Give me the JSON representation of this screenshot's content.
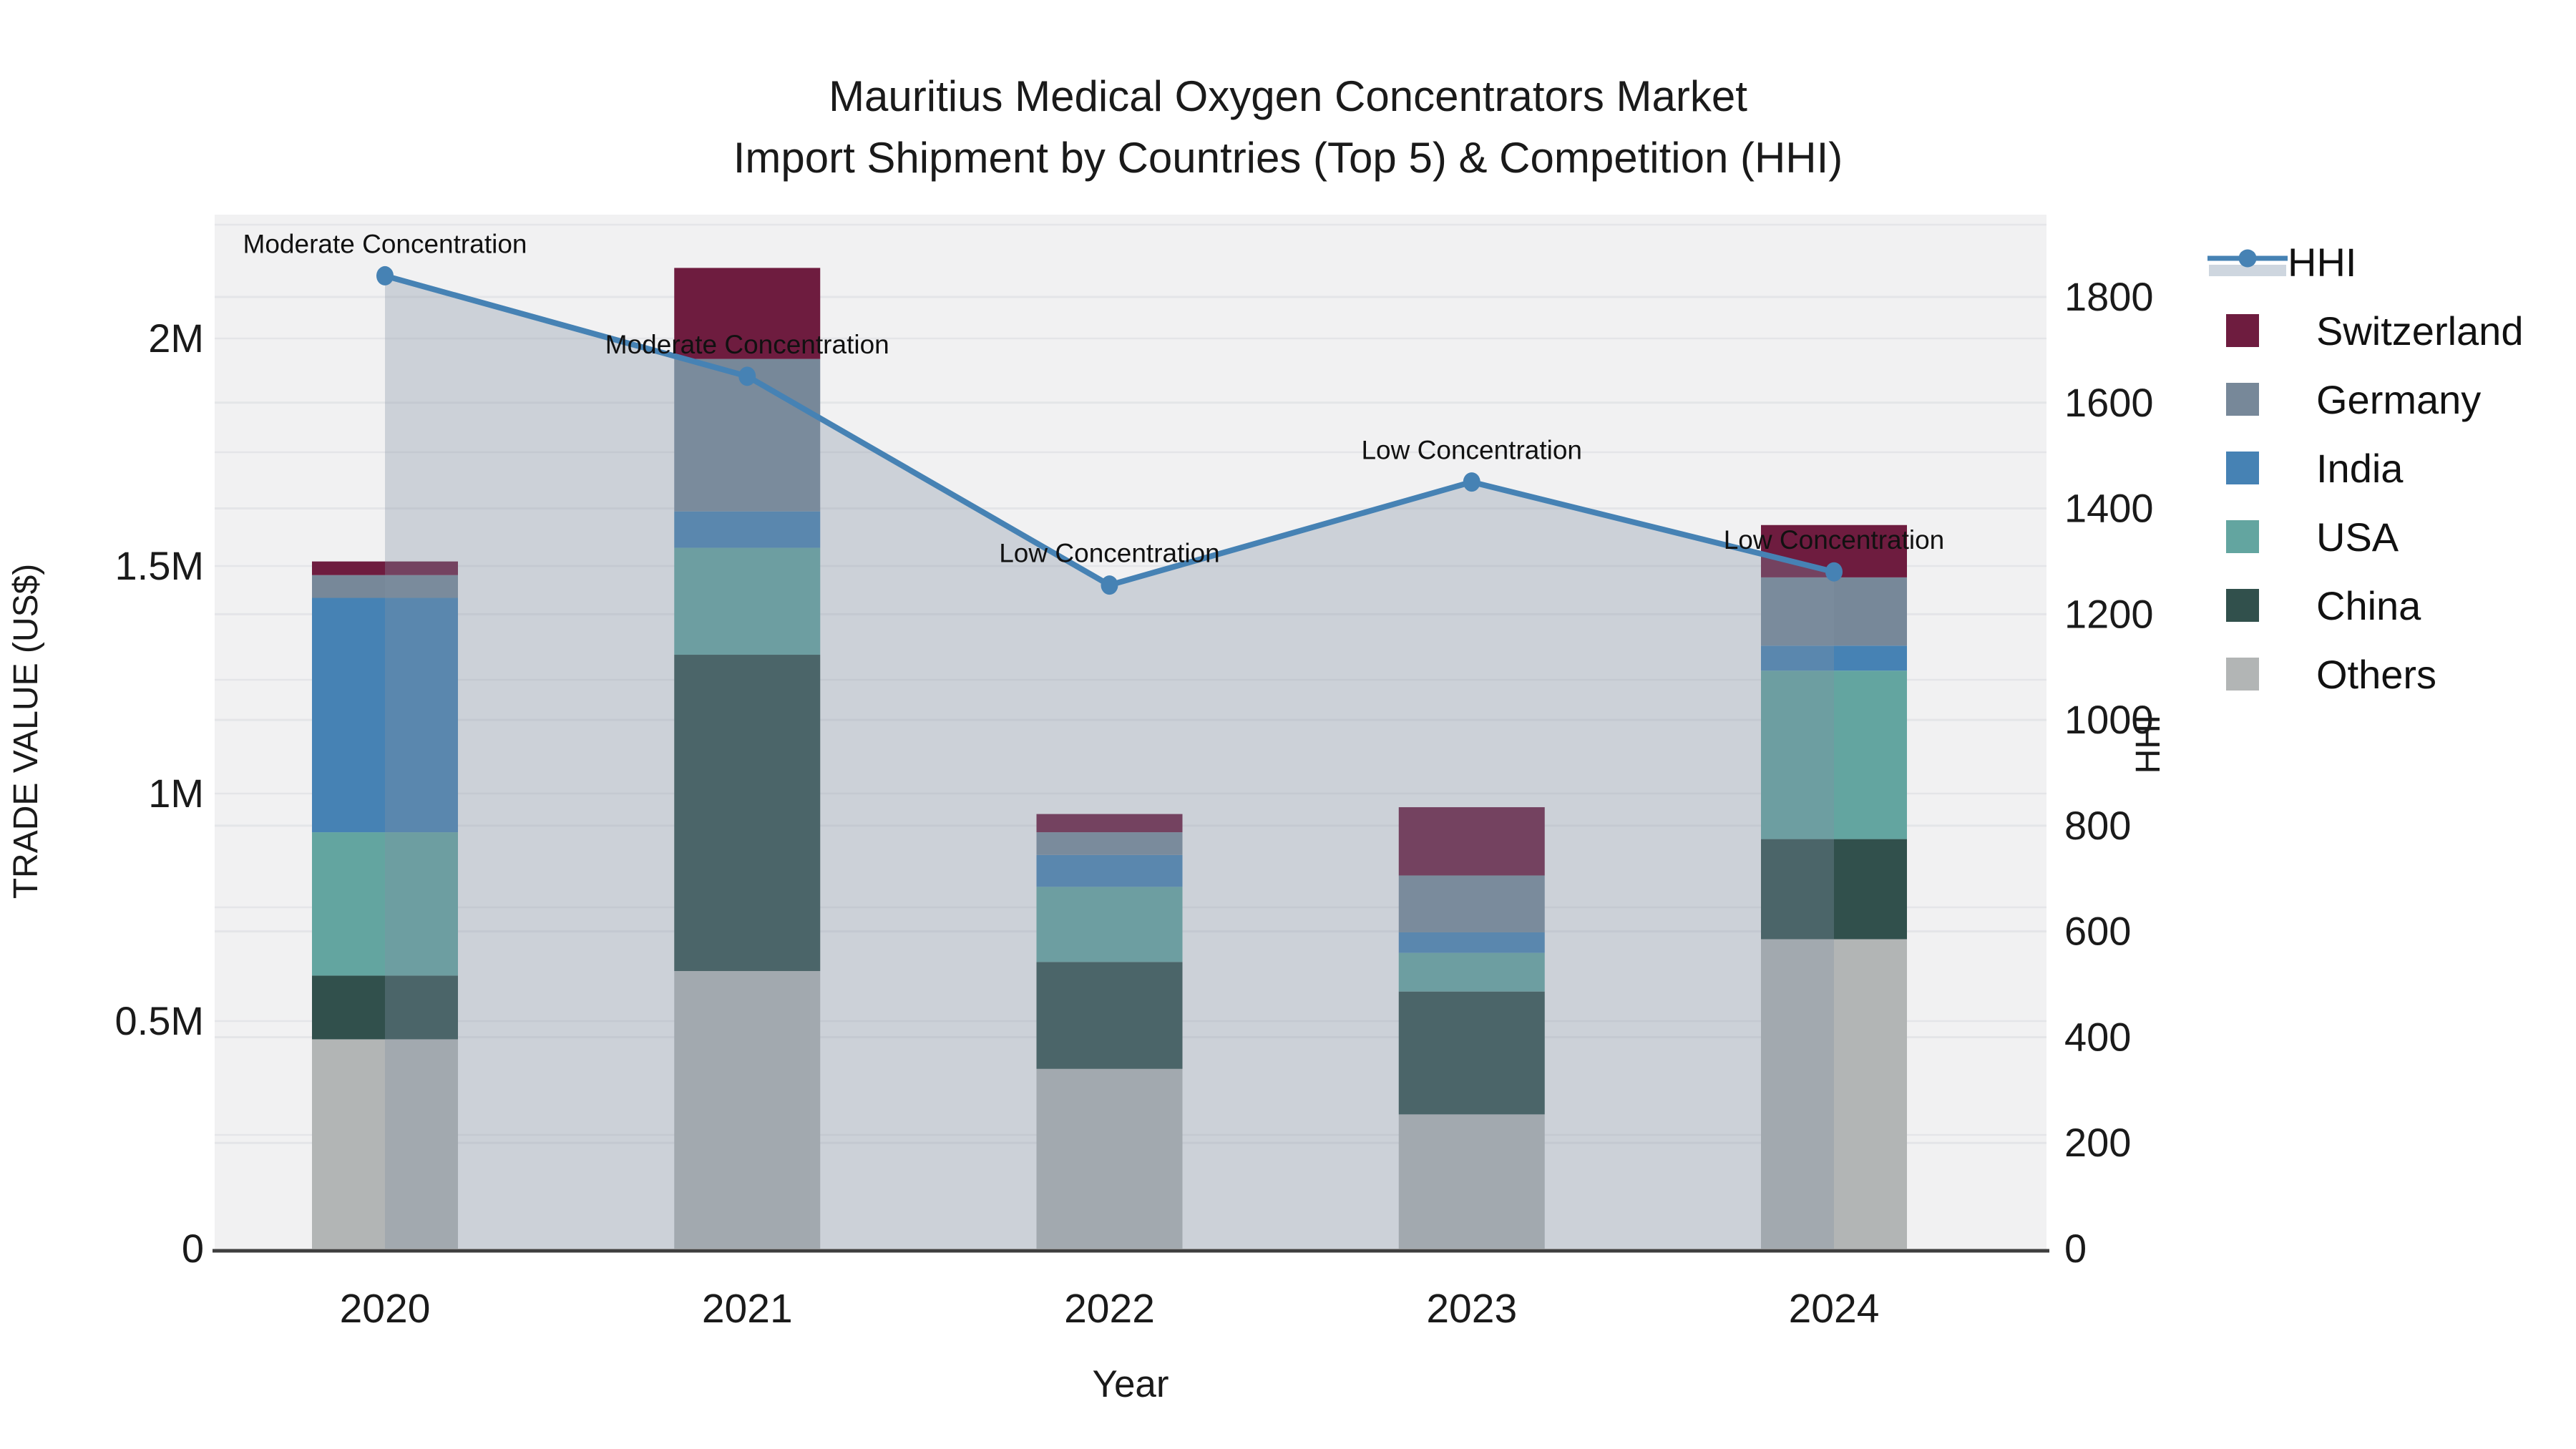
{
  "title": {
    "line1": "Mauritius Medical Oxygen Concentrators Market",
    "line2": "Import Shipment by Countries (Top 5) & Competition (HHI)"
  },
  "axes": {
    "x": {
      "title": "Year",
      "ticks": [
        "2020",
        "2021",
        "2022",
        "2023",
        "2024"
      ]
    },
    "y_left": {
      "title": "TRADE VALUE (US$)",
      "ticks": [
        {
          "label": "0",
          "value": 0
        },
        {
          "label": "0.5M",
          "value": 500000
        },
        {
          "label": "1M",
          "value": 1000000
        },
        {
          "label": "1.5M",
          "value": 1500000
        },
        {
          "label": "2M",
          "value": 2000000
        }
      ]
    },
    "y_right": {
      "title": "HHI",
      "ticks": [
        {
          "label": "0",
          "value": 0
        },
        {
          "label": "200",
          "value": 200
        },
        {
          "label": "400",
          "value": 400
        },
        {
          "label": "600",
          "value": 600
        },
        {
          "label": "800",
          "value": 800
        },
        {
          "label": "1000",
          "value": 1000
        },
        {
          "label": "1200",
          "value": 1200
        },
        {
          "label": "1400",
          "value": 1400
        },
        {
          "label": "1600",
          "value": 1600
        },
        {
          "label": "1800",
          "value": 1800
        }
      ]
    }
  },
  "legend": {
    "items": [
      {
        "label": "HHI",
        "type": "line",
        "color": "#4682B4",
        "band_color": "#CED6DF"
      },
      {
        "label": "Switzerland",
        "type": "square",
        "color": "#6E1C3F"
      },
      {
        "label": "Germany",
        "type": "square",
        "color": "#778899"
      },
      {
        "label": "India",
        "type": "square",
        "color": "#4682B4"
      },
      {
        "label": "USA",
        "type": "square",
        "color": "#63A5A0"
      },
      {
        "label": "China",
        "type": "square",
        "color": "#31504C"
      },
      {
        "label": "Others",
        "type": "square",
        "color": "#B2B5B5"
      }
    ]
  },
  "colors": {
    "plot_background": "#F1F1F2",
    "figure_background": "#FFFFFF",
    "gridline": "#E4E5E8",
    "axis_line": "#3F3F3F",
    "text": "#1A1A1A",
    "hhi_line": "#4682B4",
    "hhi_area_fill": "rgba(130,145,165,0.33)"
  },
  "chart_data": {
    "type": "bar",
    "subtype": "stacked_bars_with_hhi_line_and_area",
    "title": "Mauritius Medical Oxygen Concentrators Market — Import Shipment by Countries (Top 5) & Competition (HHI)",
    "xlabel": "Year",
    "ylabel_left": "TRADE VALUE (US$)",
    "ylabel_right": "HHI",
    "categories": [
      "2020",
      "2021",
      "2022",
      "2023",
      "2024"
    ],
    "value_unit": "US$",
    "stack_order_bottom_to_top": [
      "Others",
      "China",
      "USA",
      "India",
      "Germany",
      "Switzerland"
    ],
    "series": [
      {
        "name": "Others",
        "color": "#B2B5B5",
        "values": [
          460000,
          610000,
          395000,
          295000,
          680000
        ]
      },
      {
        "name": "China",
        "color": "#31504C",
        "values": [
          140000,
          695000,
          235000,
          270000,
          220000
        ]
      },
      {
        "name": "USA",
        "color": "#63A5A0",
        "values": [
          315000,
          235000,
          165000,
          85000,
          370000
        ]
      },
      {
        "name": "India",
        "color": "#4682B4",
        "values": [
          515000,
          80000,
          70000,
          45000,
          55000
        ]
      },
      {
        "name": "Germany",
        "color": "#778899",
        "values": [
          50000,
          335000,
          50000,
          125000,
          150000
        ]
      },
      {
        "name": "Switzerland",
        "color": "#6E1C3F",
        "values": [
          30000,
          200000,
          40000,
          150000,
          115000
        ]
      }
    ],
    "bar_totals": [
      1510000,
      2155000,
      955000,
      970000,
      1590000
    ],
    "line_series": {
      "name": "HHI",
      "axis": "right",
      "color": "#4682B4",
      "area_fill": "rgba(130,145,165,0.33)",
      "values": [
        1840,
        1650,
        1255,
        1450,
        1280
      ]
    },
    "annotations": [
      {
        "category": "2020",
        "text": "Moderate Concentration"
      },
      {
        "category": "2021",
        "text": "Moderate Concentration"
      },
      {
        "category": "2022",
        "text": "Low Concentration"
      },
      {
        "category": "2023",
        "text": "Low Concentration"
      },
      {
        "category": "2024",
        "text": "Low Concentration"
      }
    ],
    "ylim_left": [
      0,
      2272000
    ],
    "ylim_right": [
      0,
      1956
    ],
    "grid": true,
    "legend_position": "right-outside"
  }
}
